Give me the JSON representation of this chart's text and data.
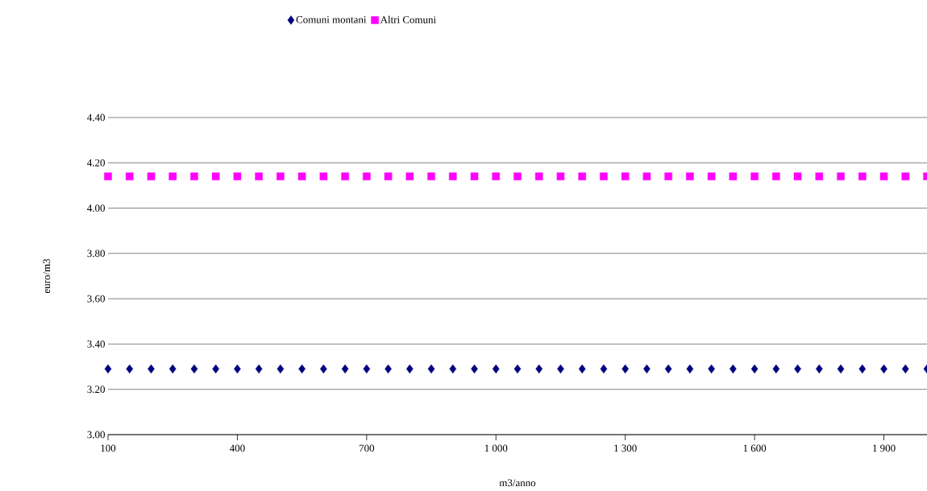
{
  "chart_data": {
    "type": "scatter",
    "xlabel": "m3/anno",
    "ylabel": "euro/m3",
    "x": [
      100,
      150,
      200,
      250,
      300,
      350,
      400,
      450,
      500,
      550,
      600,
      650,
      700,
      750,
      800,
      850,
      900,
      950,
      1000,
      1050,
      1100,
      1150,
      1200,
      1250,
      1300,
      1350,
      1400,
      1450,
      1500,
      1550,
      1600,
      1650,
      1700,
      1750,
      1800,
      1850,
      1900,
      1950,
      2000
    ],
    "series": [
      {
        "name": "Comuni montani",
        "color": "#000080",
        "marker": "diamond",
        "values": [
          3.29,
          3.29,
          3.29,
          3.29,
          3.29,
          3.29,
          3.29,
          3.29,
          3.29,
          3.29,
          3.29,
          3.29,
          3.29,
          3.29,
          3.29,
          3.29,
          3.29,
          3.29,
          3.29,
          3.29,
          3.29,
          3.29,
          3.29,
          3.29,
          3.29,
          3.29,
          3.29,
          3.29,
          3.29,
          3.29,
          3.29,
          3.29,
          3.29,
          3.29,
          3.29,
          3.29,
          3.29,
          3.29,
          3.29
        ]
      },
      {
        "name": "Altri Comuni",
        "color": "#ff00ff",
        "marker": "square",
        "values": [
          4.14,
          4.14,
          4.14,
          4.14,
          4.14,
          4.14,
          4.14,
          4.14,
          4.14,
          4.14,
          4.14,
          4.14,
          4.14,
          4.14,
          4.14,
          4.14,
          4.14,
          4.14,
          4.14,
          4.14,
          4.14,
          4.14,
          4.14,
          4.14,
          4.14,
          4.14,
          4.14,
          4.14,
          4.14,
          4.14,
          4.14,
          4.14,
          4.14,
          4.14,
          4.14,
          4.14,
          4.14,
          4.14,
          4.14
        ]
      }
    ],
    "xlim": [
      100,
      2000
    ],
    "xticks": [
      100,
      400,
      700,
      {
        "value": 1000,
        "label": "1 000"
      },
      {
        "value": 1300,
        "label": "1 300"
      },
      {
        "value": 1600,
        "label": "1 600"
      },
      {
        "value": 1900,
        "label": "1 900"
      }
    ],
    "ylim": [
      3.0,
      4.4
    ],
    "yticks": [
      {
        "value": 3.0,
        "label": "3.00"
      },
      {
        "value": 3.2,
        "label": "3.20"
      },
      {
        "value": 3.4,
        "label": "3.40"
      },
      {
        "value": 3.6,
        "label": "3.60"
      },
      {
        "value": 3.8,
        "label": "3.80"
      },
      {
        "value": 4.0,
        "label": "4.00"
      },
      {
        "value": 4.2,
        "label": "4.20"
      },
      {
        "value": 4.4,
        "label": "4.40"
      }
    ],
    "grid": "y",
    "legend": "top"
  }
}
